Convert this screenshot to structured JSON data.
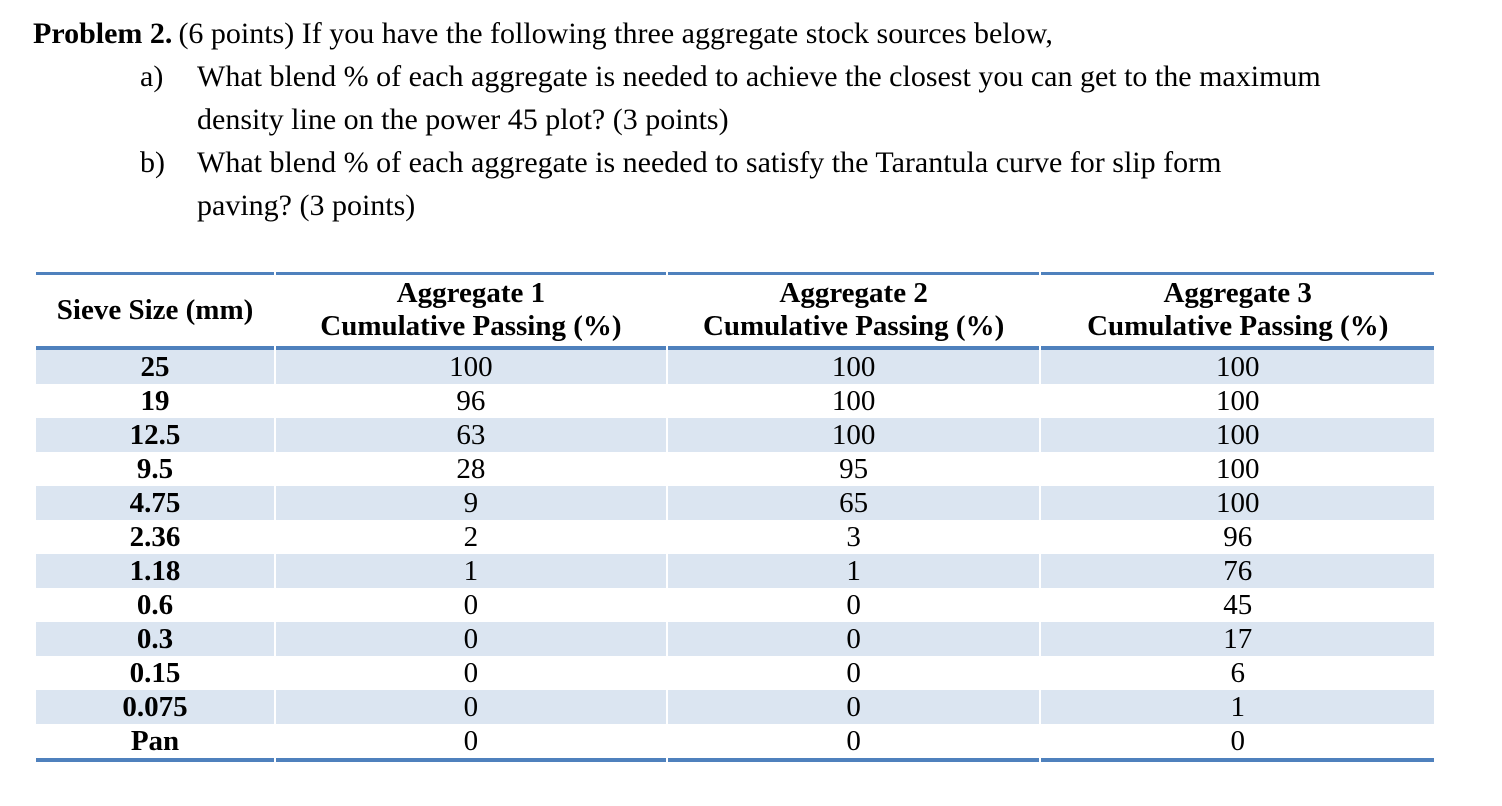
{
  "problem": {
    "label": "Problem 2.",
    "intro": "(6 points) If you have the following three aggregate stock sources below,",
    "parts": [
      {
        "marker": "a)",
        "lines": [
          "What blend % of each aggregate is needed to achieve the closest you can get to the maximum",
          "density line on the power 45 plot? (3 points)"
        ]
      },
      {
        "marker": "b)",
        "lines": [
          "What blend % of each aggregate is needed to satisfy the Tarantula curve for slip form",
          "paving? (3 points)"
        ]
      }
    ]
  },
  "table": {
    "headers": [
      {
        "line1": "Sieve Size (mm)",
        "line2": ""
      },
      {
        "line1": "Aggregate 1",
        "line2": "Cumulative Passing (%)"
      },
      {
        "line1": "Aggregate 2",
        "line2": "Cumulative Passing (%)"
      },
      {
        "line1": "Aggregate 3",
        "line2": "Cumulative Passing (%)"
      }
    ],
    "rows": [
      [
        "25",
        "100",
        "100",
        "100"
      ],
      [
        "19",
        "96",
        "100",
        "100"
      ],
      [
        "12.5",
        "63",
        "100",
        "100"
      ],
      [
        "9.5",
        "28",
        "95",
        "100"
      ],
      [
        "4.75",
        "9",
        "65",
        "100"
      ],
      [
        "2.36",
        "2",
        "3",
        "96"
      ],
      [
        "1.18",
        "1",
        "1",
        "76"
      ],
      [
        "0.6",
        "0",
        "0",
        "45"
      ],
      [
        "0.3",
        "0",
        "0",
        "17"
      ],
      [
        "0.15",
        "0",
        "0",
        "6"
      ],
      [
        "0.075",
        "0",
        "0",
        "1"
      ],
      [
        "Pan",
        "0",
        "0",
        "0"
      ]
    ]
  },
  "colors": {
    "accent_border": "#4F81BD",
    "row_shading": "#DBE5F1"
  }
}
